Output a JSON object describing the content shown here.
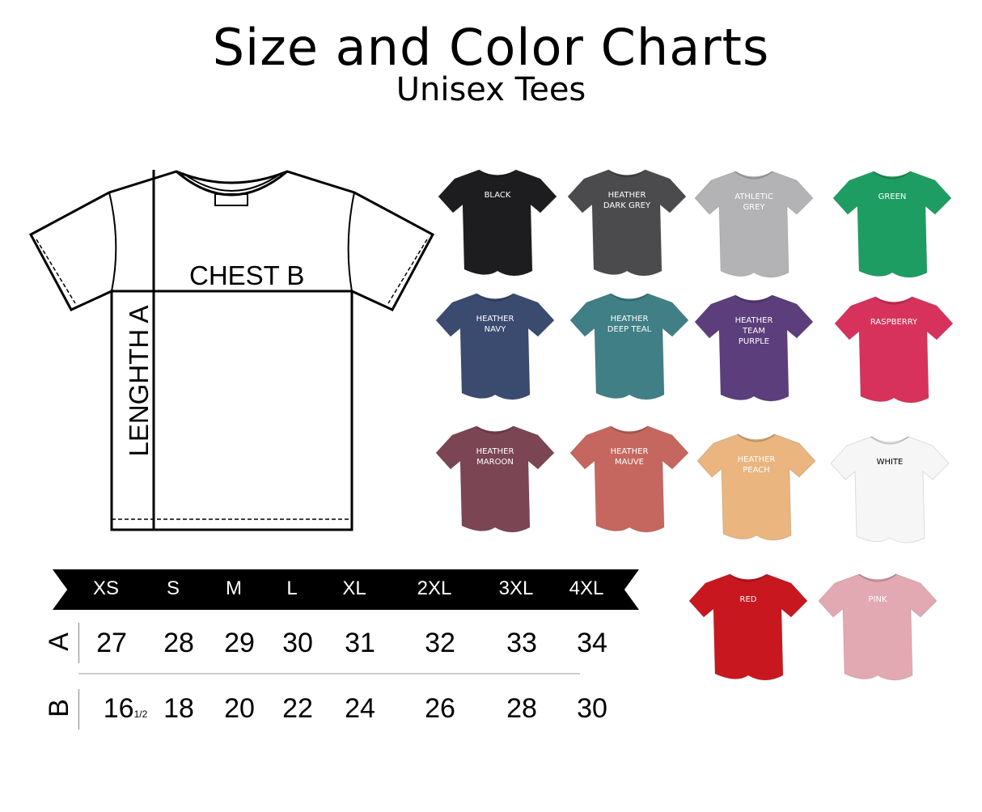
{
  "header": {
    "title": "Size and Color Charts",
    "subtitle": "Unisex Tees"
  },
  "diagram": {
    "chest_label": "CHEST B",
    "length_label": "LENGHTH A"
  },
  "size_table": {
    "sizes": [
      "XS",
      "S",
      "M",
      "L",
      "XL",
      "2XL",
      "3XL",
      "4XL"
    ],
    "row_a": {
      "label": "A",
      "values": [
        "27",
        "28",
        "29",
        "30",
        "31",
        "32",
        "33",
        "34"
      ]
    },
    "row_b": {
      "label": "B",
      "values": [
        "16",
        "18",
        "20",
        "22",
        "24",
        "26",
        "28",
        "30"
      ],
      "xs_fraction": "1/2"
    }
  },
  "colors": [
    {
      "name": "BLACK",
      "hex": "#1d1d1f",
      "text": "#ffffff"
    },
    {
      "name": "HEATHER\nDARK GREY",
      "hex": "#4b4b4e",
      "text": "#ffffff"
    },
    {
      "name": "ATHLETIC\nGREY",
      "hex": "#b3b3b5",
      "text": "#ffffff"
    },
    {
      "name": "GREEN",
      "hex": "#1e9d63",
      "text": "#ffffff"
    },
    {
      "name": "HEATHER\nNAVY",
      "hex": "#3b4b6f",
      "text": "#ffffff"
    },
    {
      "name": "HEATHER\nDEEP TEAL",
      "hex": "#407f86",
      "text": "#ffffff"
    },
    {
      "name": "HEATHER\nTEAM\nPURPLE",
      "hex": "#5b3e7b",
      "text": "#ffffff"
    },
    {
      "name": "RASPBERRY",
      "hex": "#d7325b",
      "text": "#ffffff"
    },
    {
      "name": "HEATHER\nMAROON",
      "hex": "#7b4554",
      "text": "#ffffff"
    },
    {
      "name": "HEATHER\nMAUVE",
      "hex": "#c6675f",
      "text": "#ffffff"
    },
    {
      "name": "HEATHER\nPEACH",
      "hex": "#eab57f",
      "text": "#ffffff"
    },
    {
      "name": "WHITE",
      "hex": "#f6f6f6",
      "text": "#000000"
    },
    {
      "name": "RED",
      "hex": "#c8171e",
      "text": "#ffffff"
    },
    {
      "name": "PINK",
      "hex": "#e3a9b3",
      "text": "#ffffff"
    }
  ]
}
